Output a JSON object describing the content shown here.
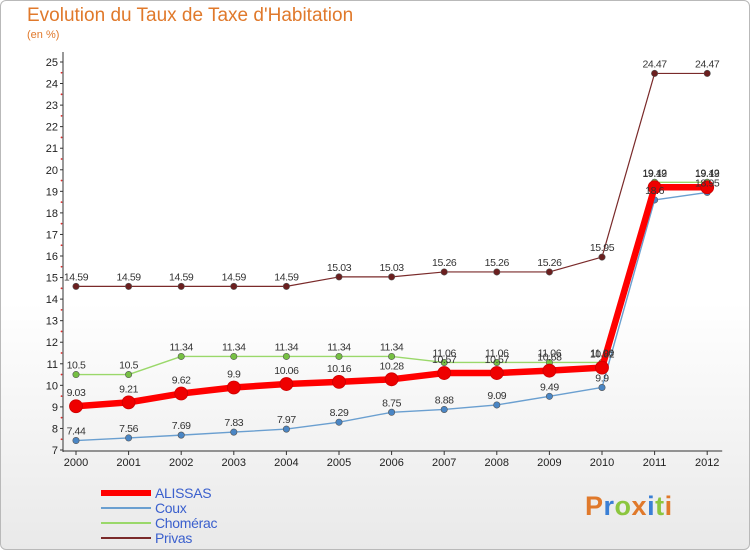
{
  "title": "Evolution du Taux de Taxe d'Habitation",
  "subtitle": "(en %)",
  "brand": {
    "letters": [
      {
        "char": "P",
        "color": "#e0792b"
      },
      {
        "char": "r",
        "color": "#3a7fd5"
      },
      {
        "char": "o",
        "color": "#8cc63f"
      },
      {
        "char": "x",
        "color": "#e0792b"
      },
      {
        "char": "i",
        "color": "#3a7fd5"
      },
      {
        "char": "t",
        "color": "#8cc63f"
      },
      {
        "char": "i",
        "color": "#e0792b"
      }
    ]
  },
  "chart_data": {
    "type": "line",
    "x": [
      "2000",
      "2001",
      "2002",
      "2003",
      "2004",
      "2005",
      "2006",
      "2007",
      "2008",
      "2009",
      "2010",
      "2011",
      "2012"
    ],
    "ylim": [
      7,
      25
    ],
    "yticks": [
      7,
      8,
      9,
      10,
      11,
      12,
      13,
      14,
      15,
      16,
      17,
      18,
      19,
      20,
      21,
      22,
      23,
      24,
      25
    ],
    "grid": false,
    "legend_position": "bottom-left",
    "series": [
      {
        "name": "Privas",
        "color": "#7a2a2a",
        "marker": "#6b1f1f",
        "values": [
          14.59,
          14.59,
          14.59,
          14.59,
          14.59,
          15.03,
          15.03,
          15.26,
          15.26,
          15.26,
          15.95,
          24.47,
          24.47
        ],
        "labels": [
          "14.59",
          "14.59",
          "14.59",
          "14.59",
          "14.59",
          "15.03",
          "15.03",
          "15.26",
          "15.26",
          "15.26",
          "15.95",
          "24.47",
          "24.47"
        ]
      },
      {
        "name": "Chomérac",
        "color": "#9ad86a",
        "marker": "#76c043",
        "values": [
          10.5,
          10.5,
          11.34,
          11.34,
          11.34,
          11.34,
          11.34,
          11.06,
          11.06,
          11.06,
          11.06,
          19.42,
          19.42
        ],
        "labels": [
          "10.5",
          "10.5",
          "11.34",
          "11.34",
          "11.34",
          "11.34",
          "11.34",
          "11.06",
          "11.06",
          "11.06",
          "11.06",
          "19.42",
          "19.42"
        ]
      },
      {
        "name": "Coux",
        "color": "#6a9fd0",
        "marker": "#4a86c5",
        "values": [
          7.44,
          7.56,
          7.69,
          7.83,
          7.97,
          8.29,
          8.75,
          8.88,
          9.09,
          9.49,
          9.9,
          18.6,
          18.95
        ],
        "labels": [
          "7.44",
          "7.56",
          "7.69",
          "7.83",
          "7.97",
          "8.29",
          "8.75",
          "8.88",
          "9.09",
          "9.49",
          "9.9",
          "18.6",
          "18.95"
        ]
      },
      {
        "name": "ALISSAS",
        "color": "#ff0000",
        "marker": "#ee0000",
        "values": [
          9.03,
          9.21,
          9.62,
          9.9,
          10.06,
          10.16,
          10.28,
          10.57,
          10.57,
          10.68,
          10.82,
          19.19,
          19.19
        ],
        "labels": [
          "9.03",
          "9.21",
          "9.62",
          "9.9",
          "10.06",
          "10.16",
          "10.28",
          "10.57",
          "10.57",
          "10.68",
          "10.82",
          "19.19",
          "19.19"
        ]
      }
    ]
  },
  "legend": {
    "items": [
      {
        "name": "ALISSAS",
        "color": "#ff0000"
      },
      {
        "name": "Coux",
        "color": "#6a9fd0"
      },
      {
        "name": "Chomérac",
        "color": "#9ad86a"
      },
      {
        "name": "Privas",
        "color": "#7a2a2a"
      }
    ]
  }
}
